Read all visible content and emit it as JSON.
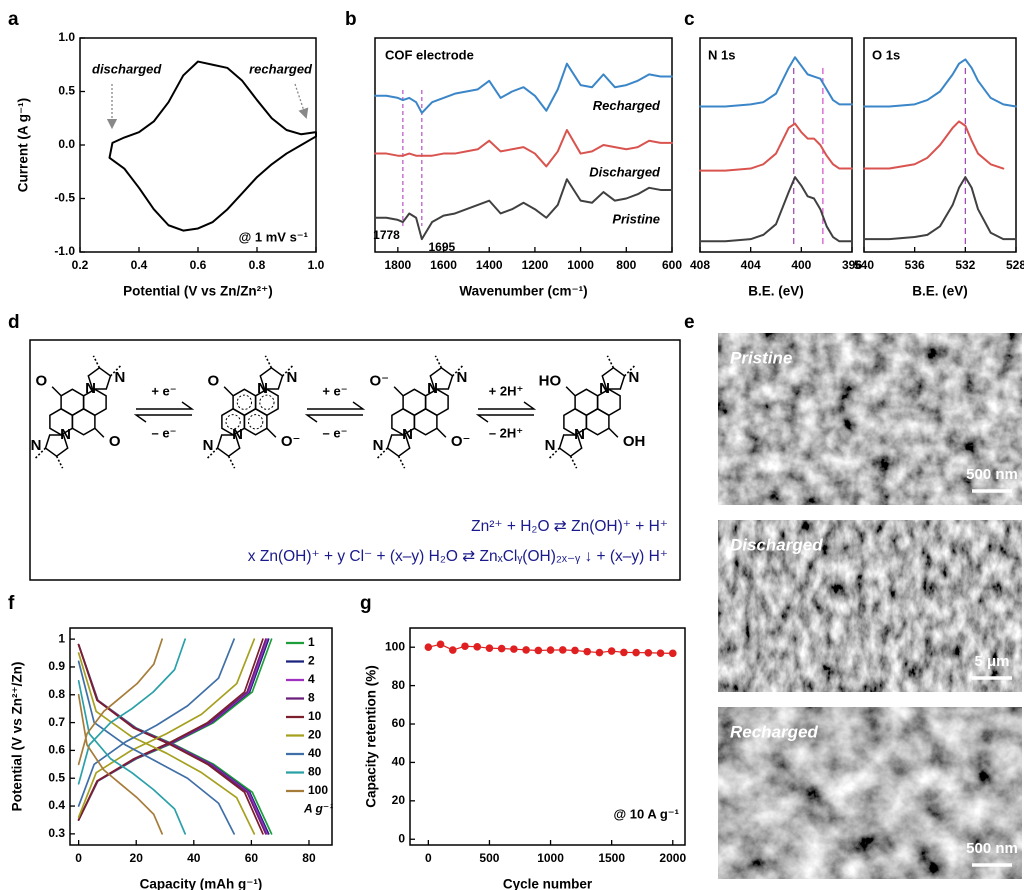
{
  "chart_data": [
    {
      "panel": "a",
      "type": "line",
      "xlabel": "Potential (V vs Zn/Zn²⁺)",
      "ylabel": "Current (A g⁻¹)",
      "annotations": [
        "discharged",
        "recharged",
        "@ 1 mV s⁻¹"
      ],
      "x": [
        0.31,
        0.35,
        0.4,
        0.45,
        0.5,
        0.55,
        0.6,
        0.65,
        0.7,
        0.75,
        0.8,
        0.85,
        0.9,
        0.95,
        1.0,
        1.0,
        0.95,
        0.9,
        0.85,
        0.8,
        0.75,
        0.7,
        0.65,
        0.6,
        0.55,
        0.5,
        0.45,
        0.4,
        0.35,
        0.3,
        0.31
      ],
      "series": [
        {
          "color": "#000000",
          "values": [
            0.02,
            0.07,
            0.12,
            0.22,
            0.4,
            0.65,
            0.78,
            0.75,
            0.72,
            0.6,
            0.42,
            0.25,
            0.14,
            0.1,
            0.12,
            0.08,
            0.0,
            -0.08,
            -0.18,
            -0.3,
            -0.45,
            -0.6,
            -0.72,
            -0.78,
            -0.8,
            -0.75,
            -0.6,
            -0.4,
            -0.22,
            -0.12,
            0.02
          ]
        }
      ],
      "xlim": [
        0.2,
        1.0
      ],
      "xticks": [
        0.2,
        0.4,
        0.6,
        0.8,
        {
          "value": 1,
          "label": "1.0"
        }
      ],
      "ylim": [
        -1,
        1
      ],
      "yticks": [
        {
          "value": -1,
          "label": "-1.0"
        },
        -0.5,
        {
          "value": 0,
          "label": "0.0"
        },
        0.5,
        {
          "value": 1,
          "label": "1.0"
        }
      ]
    },
    {
      "panel": "b",
      "type": "line",
      "xlabel": "Wavenumber (cm⁻¹)",
      "annotations": [
        "COF electrode"
      ],
      "peak_labels": [
        {
          "value": 1778,
          "label": "1778"
        },
        {
          "value": 1695,
          "label": "1695"
        }
      ],
      "x": [
        1900,
        1850,
        1800,
        1778,
        1750,
        1720,
        1695,
        1650,
        1600,
        1550,
        1500,
        1450,
        1400,
        1350,
        1300,
        1250,
        1200,
        1150,
        1100,
        1060,
        1000,
        950,
        900,
        850,
        800,
        750,
        700,
        650,
        600
      ],
      "series": [
        {
          "name": "Recharged",
          "color": "#3a86c8",
          "values": [
            7.3,
            7.3,
            7.2,
            7.1,
            7.2,
            7.0,
            6.5,
            7.0,
            7.2,
            7.4,
            7.5,
            7.6,
            8.0,
            7.2,
            7.5,
            7.7,
            7.3,
            6.6,
            7.6,
            8.8,
            7.8,
            7.7,
            8.3,
            7.7,
            7.8,
            8.0,
            8.3,
            8.2,
            8.2
          ]
        },
        {
          "name": "Discharged",
          "color": "#d9534f",
          "values": [
            4.6,
            4.6,
            4.5,
            4.5,
            4.6,
            4.5,
            4.5,
            4.5,
            4.6,
            4.6,
            4.7,
            4.8,
            5.2,
            4.7,
            4.8,
            4.9,
            4.6,
            4.0,
            4.7,
            5.7,
            4.6,
            4.7,
            5.0,
            4.9,
            4.8,
            4.9,
            5.2,
            5.1,
            5.1
          ]
        },
        {
          "name": "Pristine",
          "color": "#404040",
          "values": [
            1.6,
            1.6,
            1.5,
            1.4,
            1.8,
            1.6,
            0.6,
            1.4,
            1.7,
            1.8,
            2.0,
            2.2,
            2.4,
            1.8,
            2.0,
            2.3,
            2.0,
            1.6,
            2.2,
            3.4,
            2.4,
            2.3,
            2.8,
            2.4,
            2.5,
            2.7,
            3.0,
            2.9,
            2.9
          ]
        }
      ],
      "xlim": [
        1900,
        600
      ],
      "xticks": [
        1800,
        1600,
        1400,
        1200,
        1000,
        800,
        600
      ],
      "ylim": [
        0,
        10
      ]
    },
    {
      "panel": "c",
      "type": "line",
      "title": "N 1s",
      "xlabel": "B.E. (eV)",
      "reference_lines": [
        400.6,
        398.3
      ],
      "x": [
        408,
        406,
        404,
        403,
        402,
        401,
        400.5,
        400,
        399.5,
        399,
        398.5,
        398,
        397.5,
        397,
        396
      ],
      "series": [
        {
          "color": "#3a86c8",
          "values": [
            6.8,
            6.8,
            6.9,
            7.0,
            7.4,
            8.6,
            9.1,
            8.7,
            8.3,
            8.2,
            8.1,
            7.6,
            7.1,
            6.9,
            6.9
          ]
        },
        {
          "color": "#d9534f",
          "values": [
            3.8,
            3.8,
            3.9,
            4.1,
            4.6,
            5.8,
            6.0,
            5.6,
            5.3,
            5.3,
            5.0,
            4.5,
            4.1,
            3.9,
            3.9
          ]
        },
        {
          "color": "#404040",
          "values": [
            0.5,
            0.5,
            0.6,
            0.8,
            1.3,
            2.8,
            3.5,
            3.1,
            2.6,
            2.5,
            2.0,
            1.2,
            0.7,
            0.5,
            0.5
          ]
        }
      ],
      "xlim": [
        408,
        396
      ],
      "xticks": [
        408,
        404,
        400,
        396
      ],
      "ylim": [
        0,
        10
      ]
    },
    {
      "type": "line",
      "title": "O 1s",
      "xlabel": "B.E. (eV)",
      "reference_lines": [
        532
      ],
      "x": [
        540,
        538,
        536,
        535,
        534,
        533,
        532.5,
        532,
        531.5,
        531,
        530,
        529,
        528
      ],
      "series": [
        {
          "color": "#3a86c8",
          "values": [
            6.8,
            6.8,
            6.9,
            7.1,
            7.5,
            8.3,
            8.8,
            9.0,
            8.6,
            8.0,
            7.2,
            6.9,
            6.8
          ]
        },
        {
          "color": "#d9534f",
          "values": [
            3.9,
            3.9,
            4.1,
            4.4,
            5.0,
            5.8,
            6.1,
            5.9,
            5.2,
            4.6,
            4.1,
            3.9,
            null
          ]
        },
        {
          "color": "#404040",
          "values": [
            0.6,
            0.6,
            0.7,
            0.8,
            1.2,
            2.2,
            3.0,
            3.5,
            3.0,
            2.0,
            0.9,
            0.6,
            0.6
          ]
        }
      ],
      "xlim": [
        540,
        528
      ],
      "xticks": [
        540,
        536,
        532,
        528
      ],
      "ylim": [
        0,
        10
      ]
    },
    {
      "panel": "f",
      "type": "line",
      "xlabel": "Capacity (mAh g⁻¹)",
      "ylabel": "Potential (V vs Zn²⁺/Zn)",
      "legend_title": "A g⁻¹",
      "series": [
        {
          "name": "1",
          "color": "#1e9e3a",
          "x": [
            0,
            6.7,
            20.1,
            33.5,
            46.9,
            60.3,
            67
          ],
          "discharge": [
            0.98,
            0.78,
            0.68,
            0.62,
            0.55,
            0.45,
            0.3
          ],
          "charge": [
            0.35,
            0.49,
            0.57,
            0.63,
            0.7,
            0.81,
            1.0
          ]
        },
        {
          "name": "2",
          "color": "#1a237e",
          "x": [
            0,
            6.6,
            19.8,
            33,
            46.2,
            59.4,
            66
          ],
          "discharge": [
            0.98,
            0.78,
            0.68,
            0.62,
            0.55,
            0.45,
            0.3
          ],
          "charge": [
            0.35,
            0.49,
            0.57,
            0.63,
            0.7,
            0.81,
            1.0
          ]
        },
        {
          "name": "4",
          "color": "#a030c0",
          "x": [
            0,
            6.6,
            19.7,
            32.8,
            45.9,
            59,
            65.5
          ],
          "discharge": [
            0.98,
            0.78,
            0.68,
            0.62,
            0.55,
            0.45,
            0.3
          ],
          "charge": [
            0.35,
            0.49,
            0.57,
            0.63,
            0.7,
            0.81,
            1.0
          ]
        },
        {
          "name": "8",
          "color": "#6b1f7a",
          "x": [
            0,
            6.5,
            19.5,
            32.5,
            45.5,
            58.5,
            65
          ],
          "discharge": [
            0.98,
            0.78,
            0.68,
            0.62,
            0.55,
            0.45,
            0.3
          ],
          "charge": [
            0.35,
            0.49,
            0.57,
            0.63,
            0.7,
            0.81,
            1.0
          ]
        },
        {
          "name": "10",
          "color": "#7a1f2b",
          "x": [
            0,
            6.4,
            19.2,
            32,
            44.8,
            57.6,
            64
          ],
          "discharge": [
            0.98,
            0.78,
            0.68,
            0.62,
            0.55,
            0.45,
            0.3
          ],
          "charge": [
            0.35,
            0.49,
            0.57,
            0.63,
            0.7,
            0.81,
            1.0
          ]
        },
        {
          "name": "20",
          "color": "#a6a01f",
          "x": [
            0,
            6.1,
            18.3,
            30.5,
            42.7,
            54.9,
            61
          ],
          "discharge": [
            0.95,
            0.74,
            0.65,
            0.59,
            0.52,
            0.43,
            0.3
          ],
          "charge": [
            0.36,
            0.52,
            0.6,
            0.66,
            0.73,
            0.84,
            1.0
          ]
        },
        {
          "name": "40",
          "color": "#3f6fa6",
          "x": [
            0,
            5.4,
            16.2,
            27,
            37.8,
            48.6,
            54
          ],
          "discharge": [
            0.92,
            0.7,
            0.62,
            0.56,
            0.5,
            0.41,
            0.3
          ],
          "charge": [
            0.4,
            0.55,
            0.63,
            0.69,
            0.76,
            0.86,
            1.0
          ]
        },
        {
          "name": "80",
          "color": "#2aa0a8",
          "x": [
            0,
            3.7,
            11.1,
            18.5,
            25.9,
            33.3,
            37
          ],
          "discharge": [
            0.85,
            0.66,
            0.57,
            0.52,
            0.46,
            0.39,
            0.3
          ],
          "charge": [
            0.48,
            0.62,
            0.7,
            0.75,
            0.81,
            0.89,
            1.0
          ]
        },
        {
          "name": "100",
          "color": "#a67c3a",
          "x": [
            0,
            2.9,
            8.7,
            14.5,
            20.3,
            26.1,
            29
          ],
          "discharge": [
            0.8,
            0.62,
            0.53,
            0.48,
            0.43,
            0.37,
            0.3
          ],
          "charge": [
            0.55,
            0.66,
            0.74,
            0.79,
            0.84,
            0.91,
            1.0
          ]
        }
      ],
      "xlim": [
        -3,
        88
      ],
      "xticks": [
        0,
        20,
        40,
        60,
        80
      ],
      "ylim": [
        0.26,
        1.04
      ],
      "yticks": [
        0.3,
        0.4,
        0.5,
        0.6,
        0.7,
        0.8,
        0.9,
        1
      ]
    },
    {
      "panel": "g",
      "type": "scatter",
      "xlabel": "Cycle number",
      "ylabel": "Capacity retention (%)",
      "annotations": [
        "@ 10 A g⁻¹"
      ],
      "color": "#e02020",
      "x": [
        0,
        100,
        200,
        300,
        400,
        500,
        600,
        700,
        800,
        900,
        1000,
        1100,
        1200,
        1300,
        1400,
        1500,
        1600,
        1700,
        1800,
        1900,
        2000
      ],
      "values": [
        100,
        101.5,
        98.5,
        100.5,
        100.2,
        99.5,
        99.3,
        99,
        98.6,
        98.3,
        98.5,
        98.6,
        98.3,
        97.7,
        97.2,
        98,
        97.3,
        97.2,
        97.1,
        96.9,
        96.8
      ],
      "xlim": [
        -150,
        2100
      ],
      "xticks": [
        0,
        500,
        1000,
        1500,
        2000
      ],
      "ylim": [
        -3,
        110
      ],
      "yticks": [
        0,
        20,
        40,
        60,
        80,
        100
      ]
    }
  ],
  "scheme": {
    "panel": "d",
    "structures": [
      {
        "atoms": [
          "O",
          "N",
          "N",
          "N",
          "N",
          "O"
        ]
      },
      {
        "atoms": [
          "O",
          "N",
          "N",
          "N",
          "N",
          "O⁻"
        ]
      },
      {
        "atoms": [
          "O⁻",
          "N",
          "N",
          "N",
          "N",
          "O⁻"
        ]
      },
      {
        "atoms": [
          "HO",
          "N",
          "N",
          "N",
          "N",
          "OH"
        ]
      }
    ],
    "arrows": [
      {
        "forward": "+ e⁻",
        "backward": "– e⁻"
      },
      {
        "forward": "+ e⁻",
        "backward": "– e⁻"
      },
      {
        "forward": "+ 2H⁺",
        "backward": "– 2H⁺"
      }
    ],
    "equations": [
      "Zn²⁺ + H₂O ⇄ Zn(OH)⁺ + H⁺",
      "x Zn(OH)⁺ + y Cl⁻ + (x–y) H₂O ⇄ ZnₓClᵧ(OH)₂ₓ₋ᵧ ↓ + (x–y) H⁺"
    ]
  },
  "micrographs": {
    "panel": "e",
    "images": [
      {
        "label": "Pristine",
        "scale_bar": "500 nm"
      },
      {
        "label": "Discharged",
        "scale_bar": "5 μm"
      },
      {
        "label": "Recharged",
        "scale_bar": "500 nm"
      }
    ]
  }
}
